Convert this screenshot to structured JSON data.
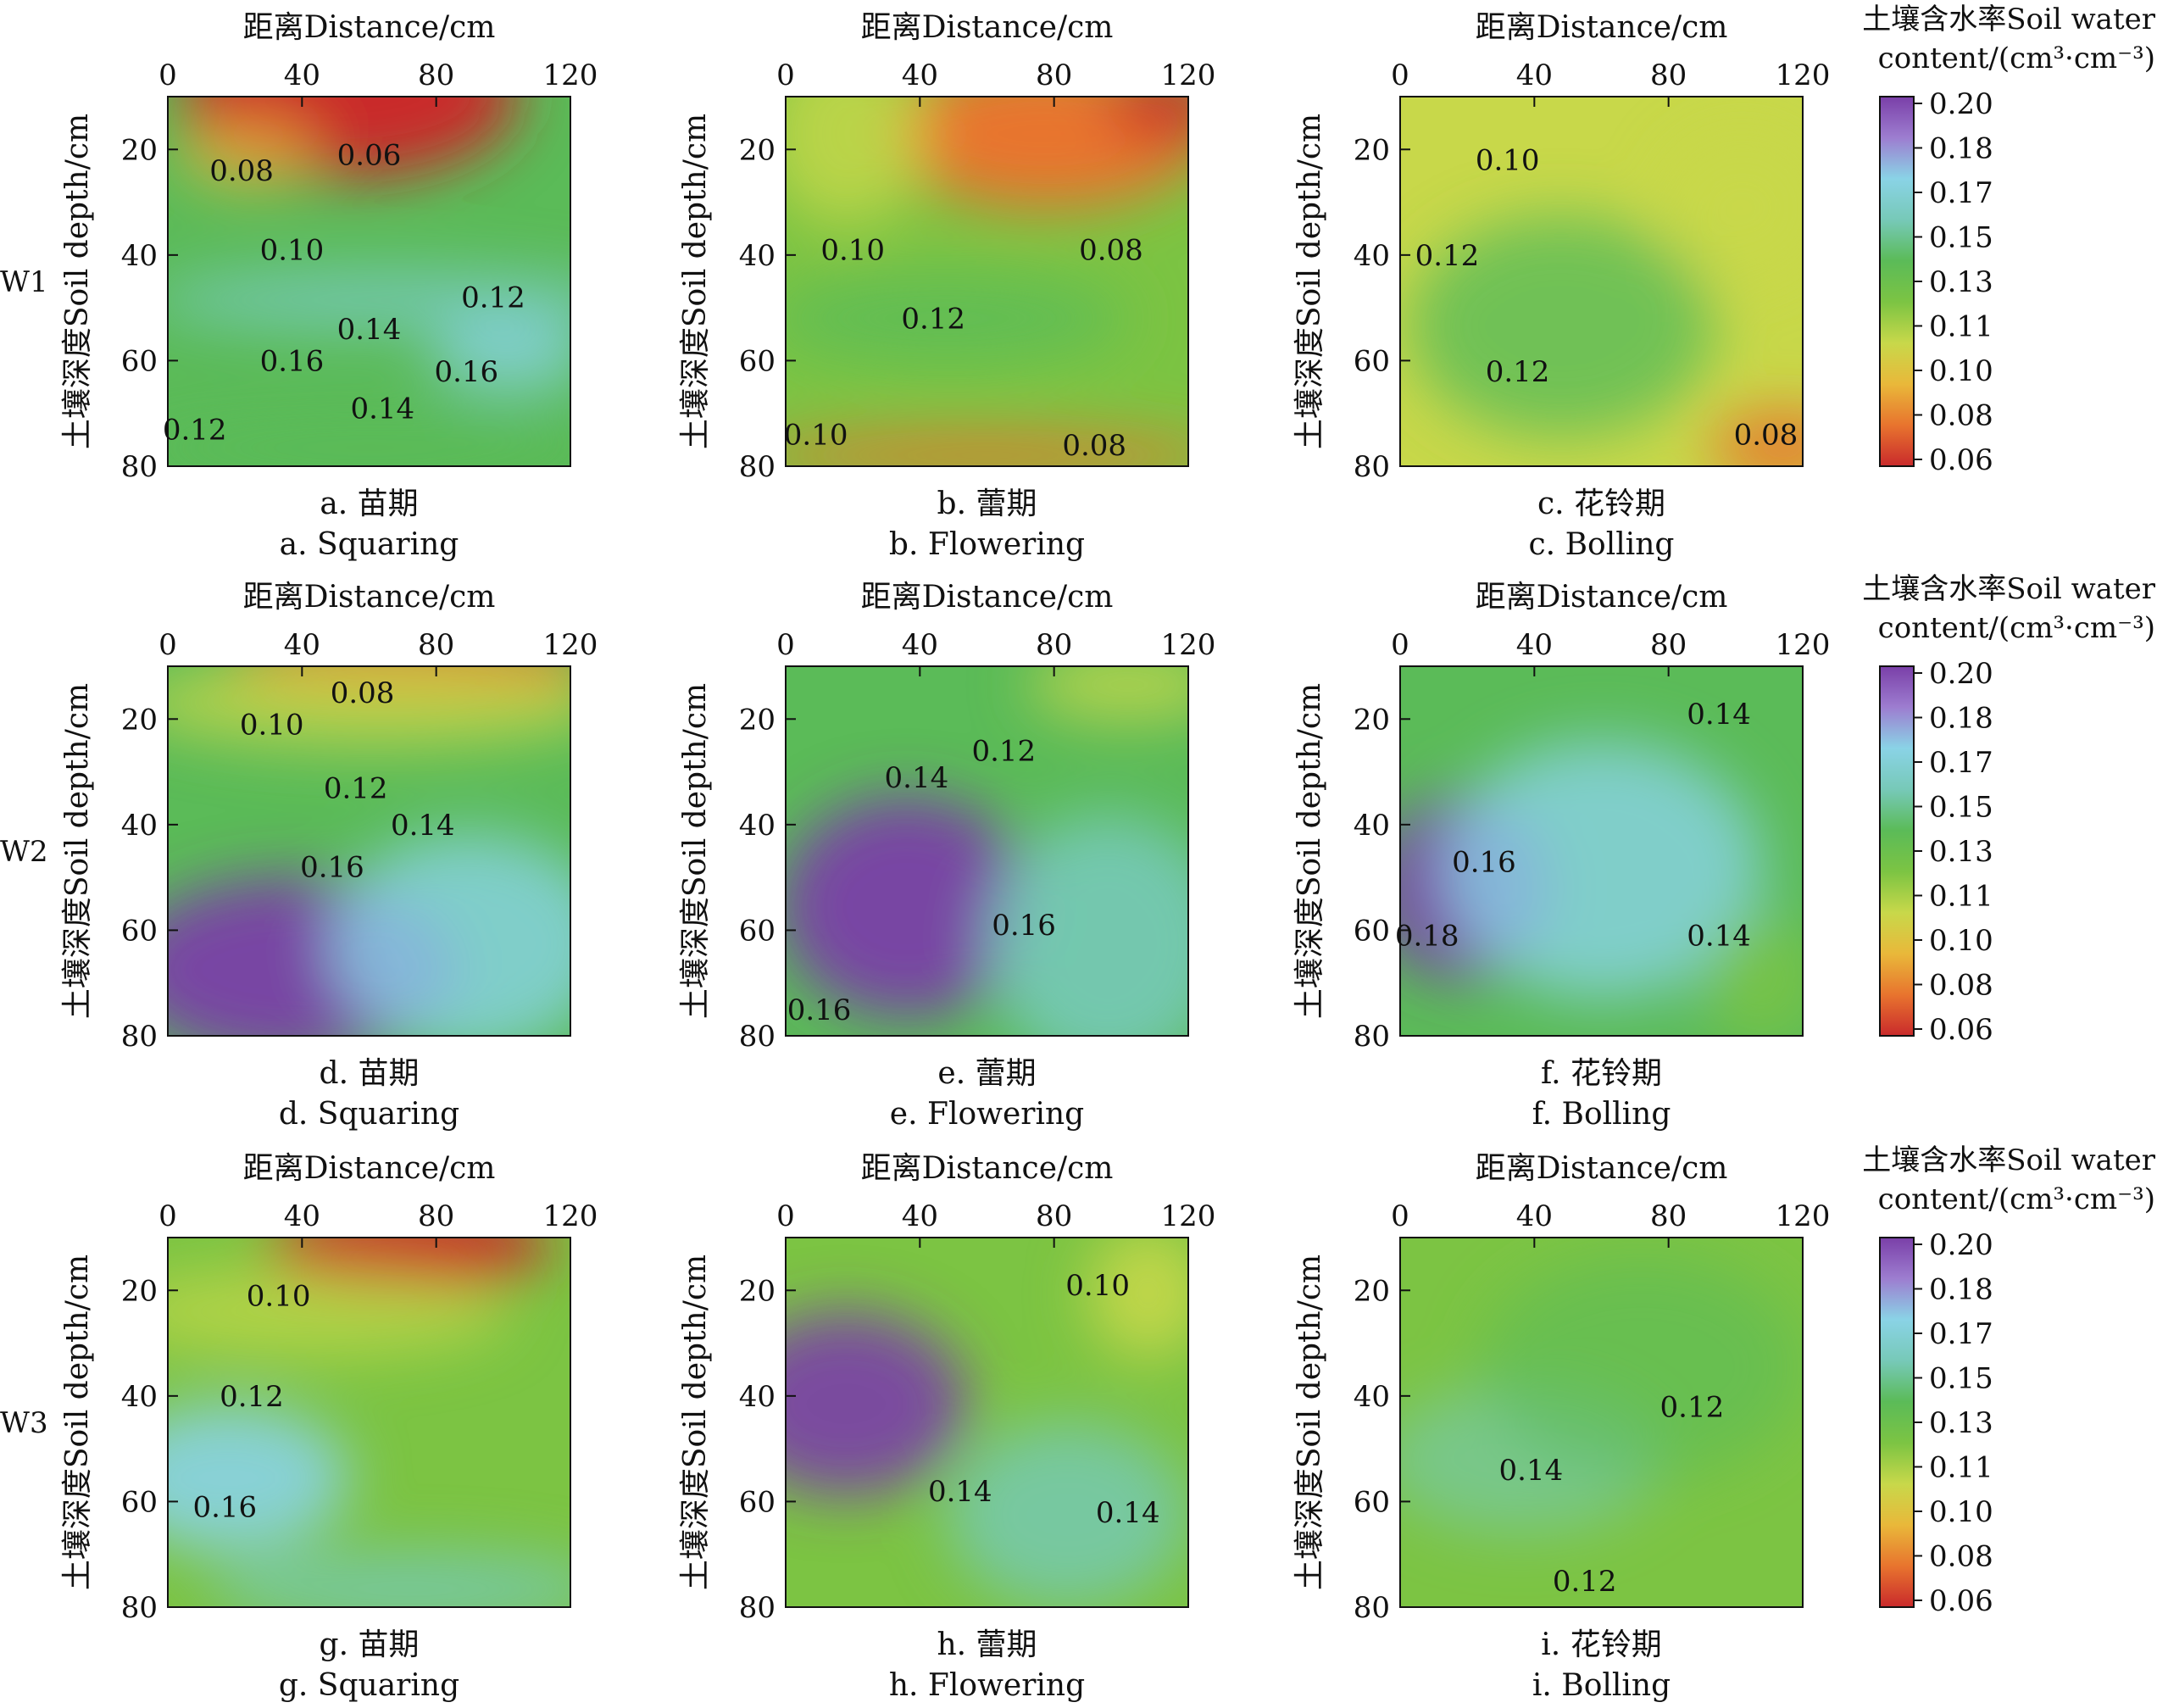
{
  "figure": {
    "x_axis_label": "距离Distance/cm",
    "y_axis_label": "土壤深度Soil depth/cm",
    "x_ticks": [
      "0",
      "40",
      "80",
      "120"
    ],
    "y_ticks": [
      "20",
      "40",
      "60",
      "80"
    ],
    "rows": [
      "W1",
      "W2",
      "W3"
    ],
    "colorbar": {
      "title_line1": "土壤含水率Soil water",
      "title_line2": "content/(cm³·cm⁻³)",
      "ticks": [
        "0.20",
        "0.18",
        "0.17",
        "0.15",
        "0.13",
        "0.11",
        "0.10",
        "0.08",
        "0.06"
      ],
      "colors": [
        "#c92a2c",
        "#e8742e",
        "#e9b83a",
        "#c8d84a",
        "#7cc443",
        "#5bbb58",
        "#77c9b8",
        "#8ad3e6",
        "#9d7dd0",
        "#7a3fa8"
      ]
    }
  },
  "chart_data": [
    {
      "type": "heatmap",
      "panel": "a",
      "row": "W1",
      "caption_cn": "a.  苗期",
      "caption_en": "a. Squaring",
      "xlim": [
        0,
        120
      ],
      "ylim": [
        10,
        80
      ],
      "clim": [
        0.06,
        0.2
      ],
      "contour_labels": [
        {
          "text": "0.06",
          "x": 60,
          "y": 21
        },
        {
          "text": "0.08",
          "x": 22,
          "y": 24
        },
        {
          "text": "0.10",
          "x": 37,
          "y": 39
        },
        {
          "text": "0.12",
          "x": 97,
          "y": 48
        },
        {
          "text": "0.14",
          "x": 60,
          "y": 54
        },
        {
          "text": "0.16",
          "x": 37,
          "y": 60
        },
        {
          "text": "0.16",
          "x": 89,
          "y": 62
        },
        {
          "text": "0.14",
          "x": 64,
          "y": 69
        },
        {
          "text": "0.12",
          "x": 8,
          "y": 73
        }
      ]
    },
    {
      "type": "heatmap",
      "panel": "b",
      "row": "W1",
      "caption_cn": "b.  蕾期",
      "caption_en": "b. Flowering",
      "xlim": [
        0,
        120
      ],
      "ylim": [
        10,
        80
      ],
      "clim": [
        0.06,
        0.2
      ],
      "contour_labels": [
        {
          "text": "0.10",
          "x": 20,
          "y": 39
        },
        {
          "text": "0.08",
          "x": 97,
          "y": 39
        },
        {
          "text": "0.12",
          "x": 44,
          "y": 52
        },
        {
          "text": "0.10",
          "x": 9,
          "y": 74
        },
        {
          "text": "0.08",
          "x": 92,
          "y": 76
        }
      ]
    },
    {
      "type": "heatmap",
      "panel": "c",
      "row": "W1",
      "caption_cn": "c.  花铃期",
      "caption_en": "c. Bolling",
      "xlim": [
        0,
        120
      ],
      "ylim": [
        10,
        80
      ],
      "clim": [
        0.06,
        0.2
      ],
      "contour_labels": [
        {
          "text": "0.10",
          "x": 32,
          "y": 22
        },
        {
          "text": "0.12",
          "x": 14,
          "y": 40
        },
        {
          "text": "0.12",
          "x": 35,
          "y": 62
        },
        {
          "text": "0.08",
          "x": 109,
          "y": 74
        }
      ]
    },
    {
      "type": "heatmap",
      "panel": "d",
      "row": "W2",
      "caption_cn": "d. 苗期",
      "caption_en": "d. Squaring",
      "xlim": [
        0,
        120
      ],
      "ylim": [
        10,
        80
      ],
      "clim": [
        0.06,
        0.2
      ],
      "contour_labels": [
        {
          "text": "0.08",
          "x": 58,
          "y": 15
        },
        {
          "text": "0.10",
          "x": 31,
          "y": 21
        },
        {
          "text": "0.12",
          "x": 56,
          "y": 33
        },
        {
          "text": "0.14",
          "x": 76,
          "y": 40
        },
        {
          "text": "0.16",
          "x": 49,
          "y": 48
        }
      ]
    },
    {
      "type": "heatmap",
      "panel": "e",
      "row": "W2",
      "caption_cn": "e. 蕾期",
      "caption_en": "e. Flowering",
      "xlim": [
        0,
        120
      ],
      "ylim": [
        10,
        80
      ],
      "clim": [
        0.06,
        0.2
      ],
      "contour_labels": [
        {
          "text": "0.12",
          "x": 65,
          "y": 26
        },
        {
          "text": "0.14",
          "x": 39,
          "y": 31
        },
        {
          "text": "0.16",
          "x": 71,
          "y": 59
        },
        {
          "text": "0.16",
          "x": 10,
          "y": 75
        }
      ]
    },
    {
      "type": "heatmap",
      "panel": "f",
      "row": "W2",
      "caption_cn": "f. 花铃期",
      "caption_en": "f. Bolling",
      "xlim": [
        0,
        120
      ],
      "ylim": [
        10,
        80
      ],
      "clim": [
        0.06,
        0.2
      ],
      "contour_labels": [
        {
          "text": "0.14",
          "x": 95,
          "y": 19
        },
        {
          "text": "0.16",
          "x": 25,
          "y": 47
        },
        {
          "text": "0.18",
          "x": 8,
          "y": 61
        },
        {
          "text": "0.14",
          "x": 95,
          "y": 61
        }
      ]
    },
    {
      "type": "heatmap",
      "panel": "g",
      "row": "W3",
      "caption_cn": "g. 苗期",
      "caption_en": "g. Squaring",
      "xlim": [
        0,
        120
      ],
      "ylim": [
        10,
        80
      ],
      "clim": [
        0.06,
        0.2
      ],
      "contour_labels": [
        {
          "text": "0.10",
          "x": 33,
          "y": 21
        },
        {
          "text": "0.12",
          "x": 25,
          "y": 40
        },
        {
          "text": "0.16",
          "x": 17,
          "y": 61
        }
      ]
    },
    {
      "type": "heatmap",
      "panel": "h",
      "row": "W3",
      "caption_cn": "h. 蕾期",
      "caption_en": "h. Flowering",
      "xlim": [
        0,
        120
      ],
      "ylim": [
        10,
        80
      ],
      "clim": [
        0.06,
        0.2
      ],
      "contour_labels": [
        {
          "text": "0.10",
          "x": 93,
          "y": 19
        },
        {
          "text": "0.14",
          "x": 52,
          "y": 58
        },
        {
          "text": "0.14",
          "x": 102,
          "y": 62
        }
      ]
    },
    {
      "type": "heatmap",
      "panel": "i",
      "row": "W3",
      "caption_cn": "i. 花铃期",
      "caption_en": "i. Bolling",
      "xlim": [
        0,
        120
      ],
      "ylim": [
        10,
        80
      ],
      "clim": [
        0.06,
        0.2
      ],
      "contour_labels": [
        {
          "text": "0.12",
          "x": 87,
          "y": 42
        },
        {
          "text": "0.14",
          "x": 39,
          "y": 54
        },
        {
          "text": "0.12",
          "x": 55,
          "y": 75
        }
      ]
    }
  ]
}
